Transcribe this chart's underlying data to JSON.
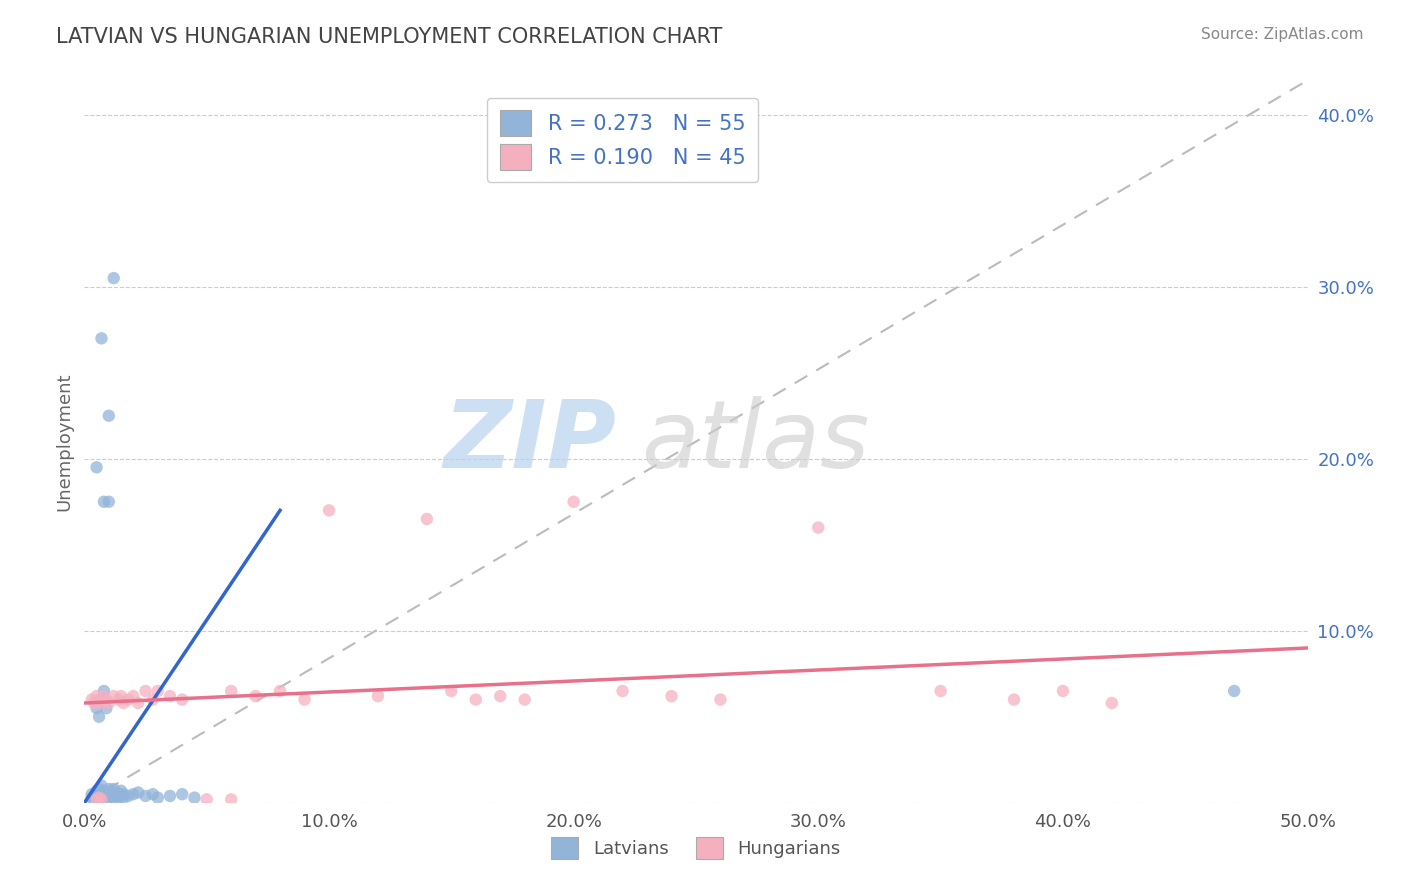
{
  "title": "LATVIAN VS HUNGARIAN UNEMPLOYMENT CORRELATION CHART",
  "source": "Source: ZipAtlas.com",
  "ylabel": "Unemployment",
  "xlim": [
    0.0,
    0.5
  ],
  "ylim": [
    0.0,
    0.42
  ],
  "xticks": [
    0.0,
    0.1,
    0.2,
    0.3,
    0.4,
    0.5
  ],
  "xticklabels": [
    "0.0%",
    "10.0%",
    "20.0%",
    "30.0%",
    "40.0%",
    "50.0%"
  ],
  "yticks": [
    0.0,
    0.1,
    0.2,
    0.3,
    0.4
  ],
  "yticklabels": [
    "",
    "10.0%",
    "20.0%",
    "30.0%",
    "40.0%"
  ],
  "latvian_color": "#92B4D9",
  "hungarian_color": "#F5B0C0",
  "trend_latvian_color": "#3366CC",
  "trend_hungarian_color": "#E8708A",
  "diagonal_color": "#BBBBBB",
  "R_latvian": 0.273,
  "N_latvian": 55,
  "R_hungarian": 0.19,
  "N_hungarian": 45,
  "legend_text_color": "#4472C4",
  "watermark_zip": "ZIP",
  "watermark_atlas": "atlas",
  "latvian_trend_x": [
    0.0,
    0.08
  ],
  "latvian_trend_y": [
    0.0,
    0.17
  ],
  "hungarian_trend_x": [
    0.0,
    0.5
  ],
  "hungarian_trend_y": [
    0.058,
    0.09
  ],
  "latvian_points": [
    [
      0.003,
      0.003
    ],
    [
      0.003,
      0.005
    ],
    [
      0.004,
      0.002
    ],
    [
      0.004,
      0.004
    ],
    [
      0.005,
      0.003
    ],
    [
      0.005,
      0.005
    ],
    [
      0.005,
      0.007
    ],
    [
      0.005,
      0.055
    ],
    [
      0.006,
      0.003
    ],
    [
      0.006,
      0.005
    ],
    [
      0.006,
      0.008
    ],
    [
      0.006,
      0.05
    ],
    [
      0.007,
      0.004
    ],
    [
      0.007,
      0.006
    ],
    [
      0.007,
      0.01
    ],
    [
      0.007,
      0.06
    ],
    [
      0.008,
      0.003
    ],
    [
      0.008,
      0.005
    ],
    [
      0.008,
      0.007
    ],
    [
      0.008,
      0.065
    ],
    [
      0.009,
      0.004
    ],
    [
      0.009,
      0.006
    ],
    [
      0.009,
      0.055
    ],
    [
      0.01,
      0.003
    ],
    [
      0.01,
      0.005
    ],
    [
      0.01,
      0.008
    ],
    [
      0.011,
      0.004
    ],
    [
      0.011,
      0.006
    ],
    [
      0.012,
      0.003
    ],
    [
      0.012,
      0.005
    ],
    [
      0.012,
      0.008
    ],
    [
      0.013,
      0.004
    ],
    [
      0.013,
      0.006
    ],
    [
      0.014,
      0.003
    ],
    [
      0.014,
      0.005
    ],
    [
      0.015,
      0.004
    ],
    [
      0.015,
      0.007
    ],
    [
      0.016,
      0.003
    ],
    [
      0.016,
      0.005
    ],
    [
      0.018,
      0.004
    ],
    [
      0.02,
      0.005
    ],
    [
      0.022,
      0.006
    ],
    [
      0.025,
      0.004
    ],
    [
      0.028,
      0.005
    ],
    [
      0.03,
      0.003
    ],
    [
      0.035,
      0.004
    ],
    [
      0.04,
      0.005
    ],
    [
      0.045,
      0.003
    ],
    [
      0.005,
      0.195
    ],
    [
      0.007,
      0.27
    ],
    [
      0.008,
      0.175
    ],
    [
      0.01,
      0.175
    ],
    [
      0.01,
      0.225
    ],
    [
      0.012,
      0.305
    ],
    [
      0.47,
      0.065
    ]
  ],
  "hungarian_points": [
    [
      0.003,
      0.06
    ],
    [
      0.004,
      0.058
    ],
    [
      0.005,
      0.062
    ],
    [
      0.005,
      0.002
    ],
    [
      0.006,
      0.06
    ],
    [
      0.006,
      0.003
    ],
    [
      0.007,
      0.058
    ],
    [
      0.007,
      0.002
    ],
    [
      0.008,
      0.062
    ],
    [
      0.009,
      0.06
    ],
    [
      0.01,
      0.058
    ],
    [
      0.012,
      0.062
    ],
    [
      0.014,
      0.06
    ],
    [
      0.015,
      0.062
    ],
    [
      0.016,
      0.058
    ],
    [
      0.018,
      0.06
    ],
    [
      0.02,
      0.062
    ],
    [
      0.022,
      0.058
    ],
    [
      0.025,
      0.065
    ],
    [
      0.028,
      0.06
    ],
    [
      0.03,
      0.065
    ],
    [
      0.035,
      0.062
    ],
    [
      0.04,
      0.06
    ],
    [
      0.05,
      0.002
    ],
    [
      0.06,
      0.002
    ],
    [
      0.06,
      0.065
    ],
    [
      0.07,
      0.062
    ],
    [
      0.08,
      0.065
    ],
    [
      0.09,
      0.06
    ],
    [
      0.1,
      0.17
    ],
    [
      0.12,
      0.062
    ],
    [
      0.14,
      0.165
    ],
    [
      0.15,
      0.065
    ],
    [
      0.16,
      0.06
    ],
    [
      0.17,
      0.062
    ],
    [
      0.18,
      0.06
    ],
    [
      0.2,
      0.175
    ],
    [
      0.22,
      0.065
    ],
    [
      0.24,
      0.062
    ],
    [
      0.26,
      0.06
    ],
    [
      0.3,
      0.16
    ],
    [
      0.35,
      0.065
    ],
    [
      0.38,
      0.06
    ],
    [
      0.4,
      0.065
    ],
    [
      0.42,
      0.058
    ]
  ]
}
